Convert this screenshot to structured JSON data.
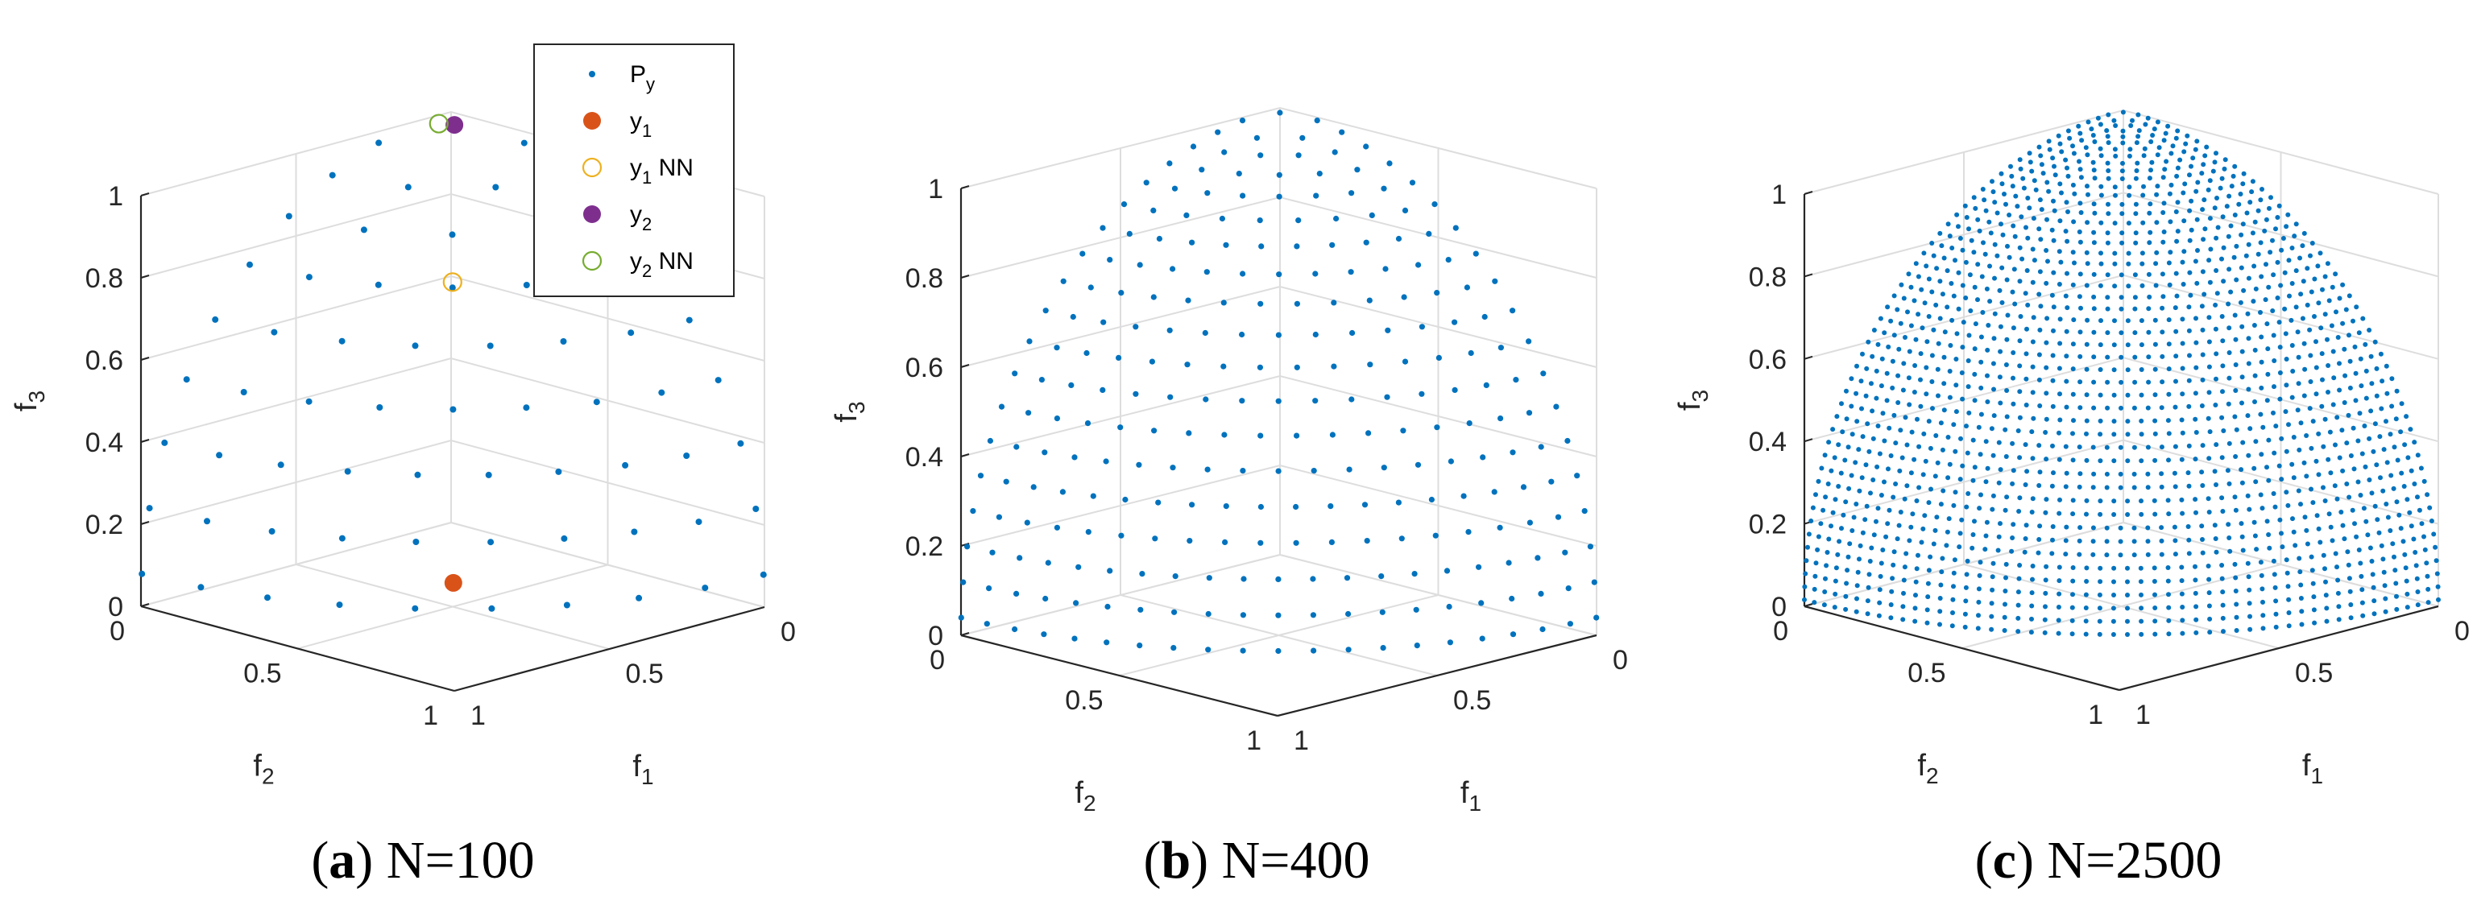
{
  "chart_data": [
    {
      "type": "scatter",
      "panel_label": "(a)",
      "caption": "N=100",
      "N": 100,
      "point_color": "#0072BD",
      "axes": {
        "xlabel": {
          "base": "f",
          "sub": "1"
        },
        "ylabel": {
          "base": "f",
          "sub": "2"
        },
        "zlabel": {
          "base": "f",
          "sub": "3"
        },
        "xlim": [
          0,
          1
        ],
        "ylim": [
          0,
          1
        ],
        "zlim": [
          0,
          1
        ],
        "x_ticks": [
          "0",
          "0.5",
          "1"
        ],
        "y_ticks": [
          "0",
          "0.5",
          "1"
        ],
        "z_ticks": [
          "0",
          "0.2",
          "0.4",
          "0.6",
          "0.8",
          "1"
        ],
        "grid": true
      },
      "series": [
        {
          "name": "P",
          "name_sub": "y",
          "marker": "dot",
          "color": "#0072BD",
          "description_points": "N points on the unit-sphere octant f1^2+f2^2+f3^2=1"
        },
        {
          "name": "y",
          "name_sub": "1",
          "marker": "filled-circle",
          "color": "#D95319",
          "points": [
            [
              0.7,
              0.7,
              0.14
            ]
          ]
        },
        {
          "name": "y",
          "name_sub": "1",
          "name_suffix": " NN",
          "marker": "open-circle",
          "color": "#EDB120",
          "points": [
            [
              0.45,
              0.45,
              0.77
            ]
          ]
        },
        {
          "name": "y",
          "name_sub": "2",
          "marker": "filled-circle",
          "color": "#7E2F8E",
          "points": [
            [
              0.07,
              0.06,
              0.995
            ]
          ]
        },
        {
          "name": "y",
          "name_sub": "2",
          "name_suffix": " NN",
          "marker": "open-circle",
          "color": "#77AC30",
          "points": [
            [
              0.04,
              0.08,
              0.996
            ]
          ]
        }
      ],
      "legend": {
        "placement": "top-right"
      }
    },
    {
      "type": "scatter",
      "panel_label": "(b)",
      "caption": "N=400",
      "N": 400,
      "point_color": "#0072BD",
      "axes": {
        "xlabel": {
          "base": "f",
          "sub": "1"
        },
        "ylabel": {
          "base": "f",
          "sub": "2"
        },
        "zlabel": {
          "base": "f",
          "sub": "3"
        },
        "xlim": [
          0,
          1
        ],
        "ylim": [
          0,
          1
        ],
        "zlim": [
          0,
          1
        ],
        "x_ticks": [
          "0",
          "0.5",
          "1"
        ],
        "y_ticks": [
          "0",
          "0.5",
          "1"
        ],
        "z_ticks": [
          "0",
          "0.2",
          "0.4",
          "0.6",
          "0.8",
          "1"
        ],
        "grid": true
      },
      "series": [
        {
          "name": "P",
          "name_sub": "y",
          "marker": "dot",
          "color": "#0072BD"
        }
      ]
    },
    {
      "type": "scatter",
      "panel_label": "(c)",
      "caption": "N=2500",
      "N": 2500,
      "point_color": "#0072BD",
      "axes": {
        "xlabel": {
          "base": "f",
          "sub": "1"
        },
        "ylabel": {
          "base": "f",
          "sub": "2"
        },
        "zlabel": {
          "base": "f",
          "sub": "3"
        },
        "xlim": [
          0,
          1
        ],
        "ylim": [
          0,
          1
        ],
        "zlim": [
          0,
          1
        ],
        "x_ticks": [
          "0",
          "0.5",
          "1"
        ],
        "y_ticks": [
          "0",
          "0.5",
          "1"
        ],
        "z_ticks": [
          "0",
          "0.2",
          "0.4",
          "0.6",
          "0.8",
          "1"
        ],
        "grid": true
      },
      "series": [
        {
          "name": "P",
          "name_sub": "y",
          "marker": "dot",
          "color": "#0072BD"
        }
      ]
    }
  ]
}
